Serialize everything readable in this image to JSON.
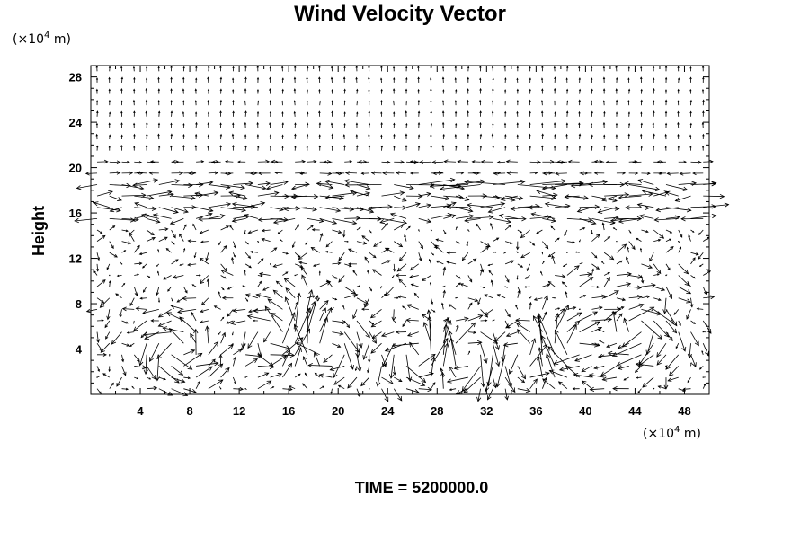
{
  "chart_data": {
    "type": "vector-field",
    "title": "Wind Velocity Vector",
    "ylabel": "Height",
    "x_unit": "(×10",
    "x_unit_exp": "4",
    "x_unit_end": " m)",
    "y_unit": "(×10",
    "y_unit_exp": "4",
    "y_unit_end": " m)",
    "footer": "TIME = 5200000.0",
    "xlim": [
      0,
      50
    ],
    "ylim": [
      0,
      29
    ],
    "x_ticks": [
      4,
      8,
      12,
      16,
      20,
      24,
      28,
      32,
      36,
      40,
      44,
      48
    ],
    "y_ticks": [
      4,
      8,
      12,
      16,
      20,
      24,
      28
    ],
    "grid": false,
    "x_grid_step": 2,
    "y_grid_step": 1,
    "vortex_centers": [
      {
        "x": 26.5,
        "y": 3.5
      },
      {
        "x": 30.5,
        "y": 3.5
      },
      {
        "x": 35,
        "y": 3.5
      },
      {
        "x": 39,
        "y": 4
      },
      {
        "x": 15,
        "y": 5
      },
      {
        "x": 19,
        "y": 4.5
      },
      {
        "x": 7,
        "y": 4
      },
      {
        "x": 44,
        "y": 6
      }
    ],
    "jet_levels": [
      16,
      18,
      19,
      20
    ]
  }
}
